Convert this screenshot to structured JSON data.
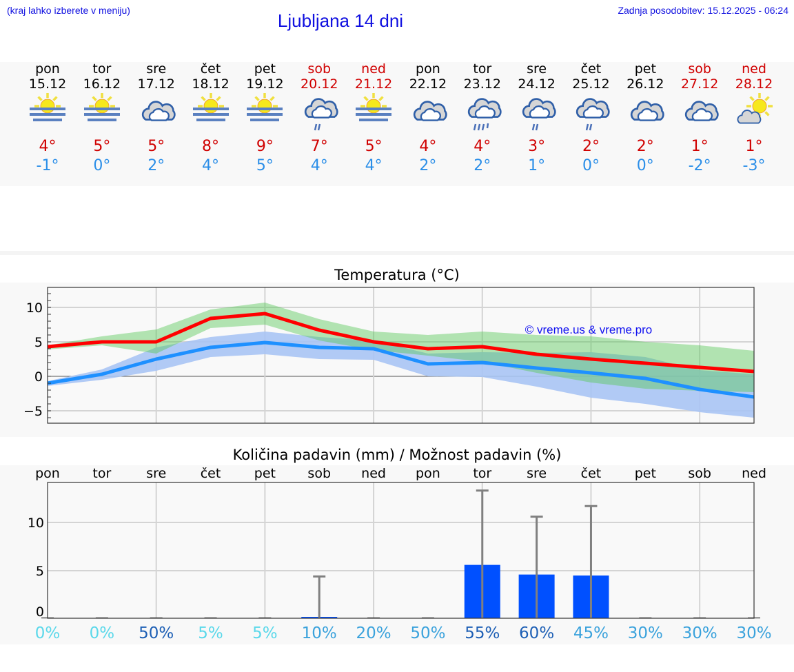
{
  "header": {
    "hint": "(kraj lahko izberete v meniju)",
    "title": "Ljubljana 14 dni",
    "updated": "Zadnja posodobitev: 15.12.2025 - 06:24"
  },
  "colors": {
    "max": "#ff0000",
    "min": "#1e90ff",
    "max_band": "#a8e8a8",
    "min_band": "#a8c4f4",
    "bar": "#0050ff",
    "error": "#808080",
    "weekend": "#d00000",
    "link": "#1010e0"
  },
  "days": [
    {
      "day": "pon",
      "date": "15.12",
      "icon": "sun-fog",
      "max": "4°",
      "min": "-1°",
      "weekend": false
    },
    {
      "day": "tor",
      "date": "16.12",
      "icon": "sun-fog",
      "max": "5°",
      "min": "0°",
      "weekend": false
    },
    {
      "day": "sre",
      "date": "17.12",
      "icon": "cloudy",
      "max": "5°",
      "min": "2°",
      "weekend": false
    },
    {
      "day": "čet",
      "date": "18.12",
      "icon": "sun-fog",
      "max": "8°",
      "min": "4°",
      "weekend": false
    },
    {
      "day": "pet",
      "date": "19.12",
      "icon": "sun-fog",
      "max": "9°",
      "min": "5°",
      "weekend": false
    },
    {
      "day": "sob",
      "date": "20.12",
      "icon": "cloud-rain-light",
      "max": "7°",
      "min": "4°",
      "weekend": true
    },
    {
      "day": "ned",
      "date": "21.12",
      "icon": "sun-fog",
      "max": "5°",
      "min": "4°",
      "weekend": true
    },
    {
      "day": "pon",
      "date": "22.12",
      "icon": "cloudy",
      "max": "4°",
      "min": "2°",
      "weekend": false
    },
    {
      "day": "tor",
      "date": "23.12",
      "icon": "cloud-rain-heavy",
      "max": "4°",
      "min": "2°",
      "weekend": false
    },
    {
      "day": "sre",
      "date": "24.12",
      "icon": "cloud-rain-light",
      "max": "3°",
      "min": "1°",
      "weekend": false
    },
    {
      "day": "čet",
      "date": "25.12",
      "icon": "cloud-rain-light",
      "max": "2°",
      "min": "0°",
      "weekend": false
    },
    {
      "day": "pet",
      "date": "26.12",
      "icon": "cloudy",
      "max": "2°",
      "min": "0°",
      "weekend": false
    },
    {
      "day": "sob",
      "date": "27.12",
      "icon": "cloudy",
      "max": "1°",
      "min": "-2°",
      "weekend": true
    },
    {
      "day": "ned",
      "date": "28.12",
      "icon": "sun-cloud",
      "max": "1°",
      "min": "-3°",
      "weekend": true
    }
  ],
  "chart_data": [
    {
      "type": "line",
      "title": "Temperatura (°C)",
      "watermark": "© vreme.us & vreme.pro",
      "x": [
        "15.12",
        "16.12",
        "17.12",
        "18.12",
        "19.12",
        "20.12",
        "21.12",
        "22.12",
        "23.12",
        "24.12",
        "25.12",
        "26.12",
        "27.12",
        "28.12"
      ],
      "ylim": [
        -6.8,
        12.9
      ],
      "yticks": [
        "−5",
        "0",
        "5",
        "10"
      ],
      "ytick_values": [
        -5,
        0,
        5,
        10
      ],
      "grid": true,
      "series": [
        {
          "role": "max",
          "values": [
            4.3,
            5,
            5,
            8.4,
            9.1,
            6.7,
            5,
            4,
            4.3,
            3.2,
            2.5,
            1.9,
            1.3,
            0.7
          ],
          "band_upper": [
            4.5,
            5.8,
            6.8,
            9.7,
            10.7,
            8.3,
            6.5,
            6,
            6.5,
            6,
            5.8,
            5,
            4.5,
            3.7
          ],
          "band_lower": [
            3.9,
            4.5,
            3.3,
            7,
            7.5,
            5.2,
            3.8,
            3,
            2.1,
            0.5,
            -0.9,
            -1.8,
            -2.1,
            -2.3
          ]
        },
        {
          "role": "min",
          "values": [
            -1,
            0.3,
            2.5,
            4.2,
            4.9,
            4.2,
            4,
            1.8,
            2,
            1.2,
            0.5,
            -0.3,
            -1.9,
            -3
          ],
          "band_upper": [
            -0.7,
            1,
            4.2,
            5.7,
            6.5,
            5.7,
            5.2,
            3.3,
            3.5,
            3.4,
            3.5,
            2.8,
            0.9,
            0.3
          ],
          "band_lower": [
            -1.4,
            -0.5,
            0.8,
            2.8,
            3.2,
            2.5,
            2.4,
            0,
            -0.1,
            -1.5,
            -3.1,
            -4,
            -5.2,
            -6
          ]
        }
      ]
    },
    {
      "type": "bar",
      "title": "Količina padavin (mm) / Možnost padavin (%)",
      "categories": [
        "pon",
        "tor",
        "sre",
        "čet",
        "pet",
        "sob",
        "ned",
        "pon",
        "tor",
        "sre",
        "čet",
        "pet",
        "sob",
        "ned"
      ],
      "values": [
        0,
        0,
        0,
        0,
        0,
        0.2,
        0,
        0,
        5.6,
        4.6,
        4.5,
        0,
        0,
        0
      ],
      "error_upper": [
        0,
        0,
        0,
        0,
        0,
        4.4,
        0,
        0,
        13.3,
        10.6,
        11.7,
        0,
        0,
        0
      ],
      "probability": [
        "0%",
        "0%",
        "50%",
        "5%",
        "5%",
        "10%",
        "20%",
        "50%",
        "55%",
        "60%",
        "45%",
        "30%",
        "30%",
        "30%"
      ],
      "probability_colors": [
        "#5ad8ea",
        "#5ad8ea",
        "#1d5fb5",
        "#5ad8ea",
        "#5ad8ea",
        "#3aa2dc",
        "#3aa2dc",
        "#3aa2dc",
        "#1d5fb5",
        "#1d5fb5",
        "#3aa2dc",
        "#3aa2dc",
        "#3aa2dc",
        "#3aa2dc"
      ],
      "ylim": [
        0,
        14.1
      ],
      "yticks": [
        "0",
        "5",
        "10"
      ],
      "ytick_values": [
        0,
        5,
        10
      ],
      "grid": true
    }
  ]
}
